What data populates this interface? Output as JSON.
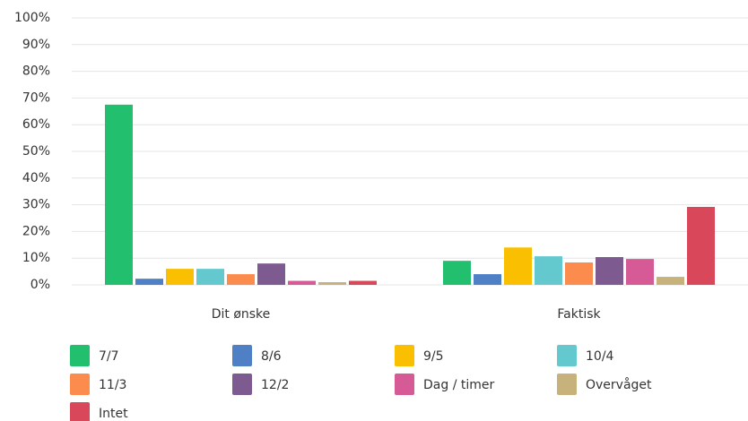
{
  "chart_data": {
    "type": "bar",
    "categories": [
      "Dit ønske",
      "Faktisk"
    ],
    "series": [
      {
        "name": "7/7",
        "color": "#21bf6e",
        "values": [
          67.5,
          9
        ]
      },
      {
        "name": "8/6",
        "color": "#4f7fc4",
        "values": [
          2.3,
          4
        ]
      },
      {
        "name": "9/5",
        "color": "#f9bf00",
        "values": [
          6,
          14
        ]
      },
      {
        "name": "10/4",
        "color": "#63c9cf",
        "values": [
          6,
          10.7
        ]
      },
      {
        "name": "11/3",
        "color": "#fb8c4d",
        "values": [
          4,
          8.4
        ]
      },
      {
        "name": "12/2",
        "color": "#7d5a90",
        "values": [
          8,
          10.4
        ]
      },
      {
        "name": "Dag / timer",
        "color": "#d65a96",
        "values": [
          1.5,
          9.7
        ]
      },
      {
        "name": "Overvåget",
        "color": "#c6b27a",
        "values": [
          1,
          3
        ]
      },
      {
        "name": "Intet",
        "color": "#d9475a",
        "values": [
          1.5,
          29.2
        ]
      }
    ],
    "ylim": [
      0,
      100
    ],
    "yticks": [
      {
        "value": 0,
        "label": "0%"
      },
      {
        "value": 10,
        "label": "10%"
      },
      {
        "value": 20,
        "label": "20%"
      },
      {
        "value": 30,
        "label": "30%"
      },
      {
        "value": 40,
        "label": "40%"
      },
      {
        "value": 50,
        "label": "50%"
      },
      {
        "value": 60,
        "label": "60%"
      },
      {
        "value": 70,
        "label": "70%"
      },
      {
        "value": 80,
        "label": "80%"
      },
      {
        "value": 90,
        "label": "90%"
      },
      {
        "value": 100,
        "label": "100%"
      }
    ],
    "grid": true
  }
}
